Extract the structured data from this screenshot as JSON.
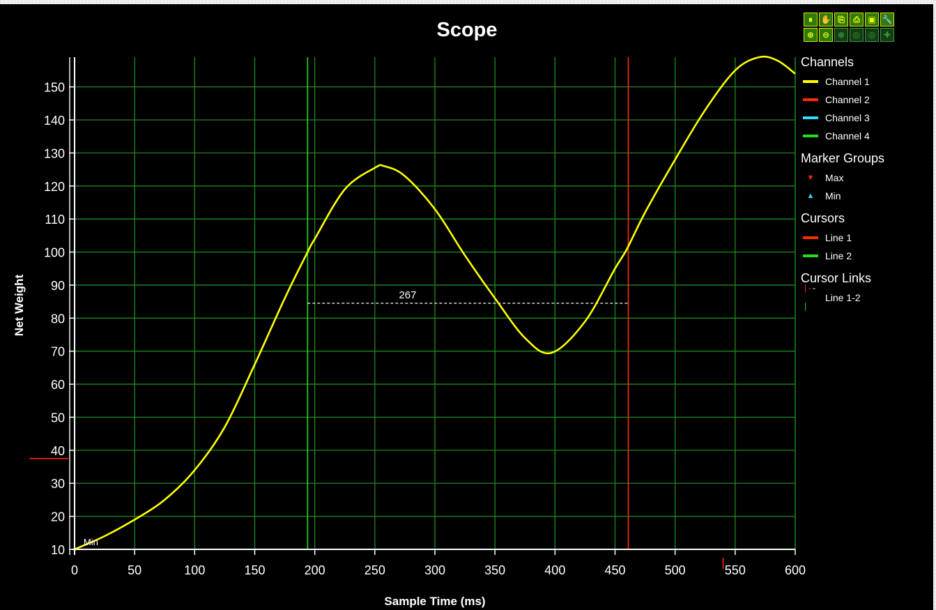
{
  "colors": {
    "background": "#000000",
    "grid": "#1f8a1f",
    "channel1": "#ffff00",
    "channel2": "#ff2a00",
    "channel3": "#33ddff",
    "channel4": "#22dd22",
    "cursor_line1": "#ff2a00",
    "cursor_line2": "#22dd22",
    "axis": "#ffffff",
    "marker_max": "#ff2a00",
    "marker_min": "#33ddff"
  },
  "toolbar": {
    "row1": [
      {
        "name": "pause-button",
        "glyph": "⏸",
        "icon": "pause-icon"
      },
      {
        "name": "pan-button",
        "glyph": "✋",
        "icon": "hand-icon"
      },
      {
        "name": "copy-button",
        "glyph": "⎘",
        "icon": "copy-icon"
      },
      {
        "name": "print-button",
        "glyph": "⎙",
        "icon": "printer-icon"
      },
      {
        "name": "save-button",
        "glyph": "▣",
        "icon": "floppy-icon"
      },
      {
        "name": "settings-button",
        "glyph": "🔧",
        "icon": "wrench-icon"
      }
    ],
    "row2": [
      {
        "name": "zoom-in-button",
        "glyph": "⊕",
        "icon": "zoom-in-icon",
        "dim": false
      },
      {
        "name": "zoom-out-button",
        "glyph": "⊖",
        "icon": "zoom-out-icon",
        "dim": false
      },
      {
        "name": "zoom-reset-button",
        "glyph": "⊗",
        "icon": "zoom-reset-icon",
        "dim": true
      },
      {
        "name": "zoom-prev-button",
        "glyph": "◎",
        "icon": "zoom-prev-icon",
        "dim": true
      },
      {
        "name": "zoom-next-button",
        "glyph": "◎",
        "icon": "zoom-next-icon",
        "dim": true
      },
      {
        "name": "pan-all-button",
        "glyph": "✚",
        "icon": "move-icon",
        "dim": true
      }
    ]
  },
  "legend": {
    "channels_title": "Channels",
    "channels": [
      {
        "label": "Channel 1",
        "color": "#ffff00"
      },
      {
        "label": "Channel 2",
        "color": "#ff2a00"
      },
      {
        "label": "Channel 3",
        "color": "#33ddff"
      },
      {
        "label": "Channel 4",
        "color": "#22dd22"
      }
    ],
    "markers_title": "Marker Groups",
    "markers": [
      {
        "label": "Max",
        "glyph": "▼",
        "color": "#ff2a00"
      },
      {
        "label": "Min",
        "glyph": "▲",
        "color": "#33ddff"
      }
    ],
    "cursors_title": "Cursors",
    "cursors": [
      {
        "label": "Line 1",
        "color": "#ff2a00"
      },
      {
        "label": "Line 2",
        "color": "#22dd22"
      }
    ],
    "links_title": "Cursor Links",
    "links": [
      {
        "label": "Line 1-2"
      }
    ]
  },
  "chart_data": {
    "type": "line",
    "title": "Scope",
    "xlabel": "Sample Time (ms)",
    "ylabel": "Net Weight",
    "xlim": [
      0,
      600
    ],
    "ylim": [
      10,
      159
    ],
    "xticks": [
      0,
      50,
      100,
      150,
      200,
      250,
      300,
      350,
      400,
      450,
      500,
      550,
      600
    ],
    "yticks": [
      10,
      20,
      30,
      40,
      50,
      60,
      70,
      80,
      90,
      100,
      110,
      120,
      130,
      140,
      150
    ],
    "grid": true,
    "legend_position": "right",
    "series": [
      {
        "name": "Channel 1",
        "color": "#ffff00",
        "x": [
          0,
          25,
          50,
          75,
          100,
          125,
          150,
          175,
          194,
          200,
          225,
          250,
          258,
          275,
          300,
          325,
          350,
          375,
          397,
          425,
          450,
          460,
          475,
          500,
          525,
          550,
          570,
          585,
          600
        ],
        "y": [
          10,
          14,
          19,
          25,
          34,
          47,
          66,
          86,
          100,
          104,
          119,
          125.5,
          126,
          123,
          113,
          99,
          86,
          74,
          69.5,
          79,
          95,
          101,
          112,
          128,
          143,
          155,
          159,
          158,
          154
        ]
      }
    ],
    "cursors": [
      {
        "name": "Line 2",
        "x": 194,
        "color": "#22dd22"
      },
      {
        "name": "Line 1",
        "x": 461,
        "color": "#ff2a00"
      }
    ],
    "cursor_link": {
      "name": "Line 1-2",
      "y": 84.5,
      "label": "267"
    },
    "annotations": [
      {
        "text": "Min",
        "x": 4,
        "y": 10
      }
    ],
    "axis_markers": [
      {
        "axis": "y",
        "value": 37.5,
        "color": "#ff2a00"
      },
      {
        "axis": "x",
        "value": 540,
        "color": "#ff2a00"
      }
    ]
  }
}
